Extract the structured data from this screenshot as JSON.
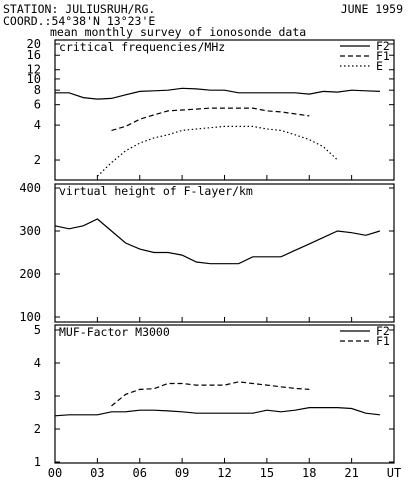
{
  "header": {
    "station": "STATION: JULIUSRUH/RG.",
    "date": "JUNE 1959",
    "coord": "COORD.:54°38'N 13°23'E",
    "subtitle": "mean monthly survey of ionosonde data"
  },
  "x_axis": {
    "range": [
      0,
      24
    ],
    "tick_values": [
      0,
      3,
      6,
      9,
      12,
      15,
      18,
      21,
      24
    ],
    "tick_labels": [
      "00",
      "03",
      "06",
      "09",
      "12",
      "15",
      "18",
      "21",
      "UT"
    ]
  },
  "chart_data": [
    {
      "type": "line",
      "title": "critical frequencies/MHz",
      "yscale": "log",
      "ylim": [
        1.4,
        20
      ],
      "yticks": [
        2,
        4,
        6,
        8,
        10,
        12,
        16,
        20
      ],
      "ytick_labels": [
        "2",
        "4",
        "6",
        "8",
        "10",
        "12",
        "16",
        "20"
      ],
      "legend": "top-right",
      "series": [
        {
          "name": "F2",
          "style": "solid",
          "x": [
            0,
            1,
            2,
            3,
            4,
            5,
            6,
            7,
            8,
            9,
            10,
            11,
            12,
            13,
            14,
            15,
            16,
            17,
            18,
            19,
            20,
            21,
            22,
            23
          ],
          "y": [
            7.6,
            7.6,
            6.9,
            6.7,
            6.8,
            7.3,
            7.8,
            7.9,
            8.0,
            8.3,
            8.2,
            8.0,
            8.0,
            7.6,
            7.6,
            7.6,
            7.6,
            7.6,
            7.4,
            7.8,
            7.7,
            8.0,
            7.9,
            7.8
          ]
        },
        {
          "name": "F1",
          "style": "dashed",
          "x": [
            4,
            5,
            6,
            7,
            8,
            9,
            10,
            11,
            12,
            13,
            14,
            15,
            16,
            17,
            18
          ],
          "y": [
            3.6,
            3.9,
            4.5,
            4.9,
            5.3,
            5.4,
            5.5,
            5.6,
            5.6,
            5.6,
            5.6,
            5.3,
            5.2,
            5.0,
            4.8
          ]
        },
        {
          "name": "E",
          "style": "dotted",
          "x": [
            3,
            4,
            5,
            6,
            7,
            8,
            9,
            10,
            11,
            12,
            13,
            14,
            15,
            16,
            17,
            18,
            19,
            20
          ],
          "y": [
            1.45,
            1.9,
            2.4,
            2.8,
            3.1,
            3.3,
            3.6,
            3.7,
            3.8,
            3.9,
            3.9,
            3.9,
            3.7,
            3.6,
            3.3,
            3.0,
            2.6,
            2.0
          ]
        }
      ]
    },
    {
      "type": "line",
      "title": "virtual height of F-layer/km",
      "ylim": [
        100,
        400
      ],
      "yticks": [
        100,
        200,
        300,
        400
      ],
      "ytick_labels": [
        "100",
        "200",
        "300",
        "400"
      ],
      "series": [
        {
          "style": "solid",
          "x": [
            0,
            1,
            2,
            3,
            4,
            5,
            6,
            7,
            8,
            9,
            10,
            11,
            12,
            13,
            14,
            15,
            16,
            17,
            18,
            19,
            20,
            21,
            22,
            23
          ],
          "y": [
            312,
            305,
            312,
            328,
            300,
            272,
            258,
            250,
            250,
            244,
            228,
            224,
            224,
            224,
            240,
            240,
            240,
            255,
            270,
            285,
            300,
            296,
            290,
            300
          ]
        }
      ]
    },
    {
      "type": "line",
      "title": "MUF-Factor M3000",
      "ylim": [
        1,
        5
      ],
      "yticks": [
        1,
        2,
        3,
        4,
        5
      ],
      "ytick_labels": [
        "1",
        "2",
        "3",
        "4",
        "5"
      ],
      "legend": "top-right",
      "series": [
        {
          "name": "F2",
          "style": "solid",
          "x": [
            0,
            1,
            2,
            3,
            4,
            5,
            6,
            7,
            8,
            9,
            10,
            11,
            12,
            13,
            14,
            15,
            16,
            17,
            18,
            19,
            20,
            21,
            22,
            23
          ],
          "y": [
            2.4,
            2.43,
            2.43,
            2.43,
            2.52,
            2.52,
            2.57,
            2.57,
            2.55,
            2.52,
            2.48,
            2.48,
            2.48,
            2.48,
            2.48,
            2.57,
            2.52,
            2.57,
            2.65,
            2.65,
            2.65,
            2.62,
            2.48,
            2.43
          ]
        },
        {
          "name": "F1",
          "style": "dashed",
          "x": [
            4,
            5,
            6,
            7,
            8,
            9,
            10,
            11,
            12,
            13,
            14,
            15,
            16,
            17,
            18
          ],
          "y": [
            2.7,
            3.05,
            3.2,
            3.22,
            3.38,
            3.38,
            3.33,
            3.33,
            3.33,
            3.43,
            3.38,
            3.33,
            3.28,
            3.23,
            3.2
          ]
        }
      ]
    }
  ]
}
